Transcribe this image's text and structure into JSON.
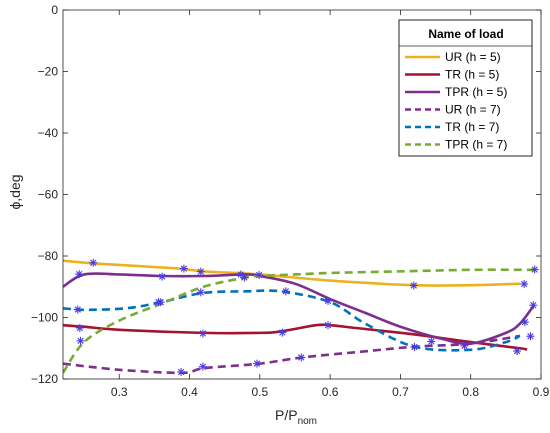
{
  "chart_data": {
    "type": "line",
    "xlabel": "P/P",
    "xlabel_sub": "nom",
    "ylabel": "ϕ,deg",
    "xlim": [
      0.22,
      0.9
    ],
    "ylim": [
      -120,
      0
    ],
    "xticks": [
      0.3,
      0.4,
      0.5,
      0.6,
      0.7,
      0.8,
      0.9
    ],
    "yticks": [
      -120,
      -100,
      -80,
      -60,
      -40,
      -20,
      0
    ],
    "xtick_labels": [
      "0.3",
      "0.4",
      "0.5",
      "0.6",
      "0.7",
      "0.8",
      "0.9"
    ],
    "ytick_labels": [
      "−120",
      "−100",
      "−80",
      "−60",
      "−40",
      "−20",
      "0"
    ],
    "grid": false,
    "legend": {
      "title": "Name of load",
      "placement": "top-right"
    },
    "series": [
      {
        "name": "UR (h = 5)",
        "color": "#EDB120",
        "dash": "solid",
        "x": [
          0.22,
          0.27,
          0.38,
          0.42,
          0.5,
          0.6,
          0.72,
          0.8,
          0.87
        ],
        "y": [
          -81.5,
          -82.5,
          -84,
          -85,
          -86,
          -88,
          -89.5,
          -89.5,
          -89
        ]
      },
      {
        "name": "TR (h = 5)",
        "color": "#A2142F",
        "dash": "solid",
        "x": [
          0.22,
          0.25,
          0.3,
          0.42,
          0.5,
          0.53,
          0.58,
          0.6,
          0.64,
          0.72,
          0.8,
          0.87,
          0.88
        ],
        "y": [
          -102.5,
          -103,
          -104,
          -105,
          -105,
          -104.5,
          -102.5,
          -102.5,
          -103.5,
          -105.5,
          -108,
          -110,
          -110.5
        ]
      },
      {
        "name": "TPR (h = 5)",
        "color": "#7E2F8E",
        "dash": "solid",
        "x": [
          0.22,
          0.25,
          0.3,
          0.36,
          0.42,
          0.48,
          0.5,
          0.55,
          0.6,
          0.65,
          0.7,
          0.76,
          0.8,
          0.85,
          0.87,
          0.89
        ],
        "y": [
          -90,
          -86,
          -86,
          -86.5,
          -86.5,
          -86,
          -86.5,
          -89,
          -94,
          -98.5,
          -103,
          -107,
          -108.5,
          -105,
          -102,
          -96
        ]
      },
      {
        "name": "UR (h = 7)",
        "color": "#7E2F8E",
        "dash": "dashed",
        "x": [
          0.22,
          0.3,
          0.39,
          0.42,
          0.5,
          0.56,
          0.65,
          0.72,
          0.8,
          0.87
        ],
        "y": [
          -115,
          -117,
          -118,
          -116.5,
          -115,
          -113,
          -111,
          -109.5,
          -108.5,
          -106
        ]
      },
      {
        "name": "TR (h = 7)",
        "color": "#0072BD",
        "dash": "dashed",
        "x": [
          0.22,
          0.25,
          0.31,
          0.36,
          0.42,
          0.48,
          0.53,
          0.6,
          0.65,
          0.72,
          0.8,
          0.85,
          0.87
        ],
        "y": [
          -97,
          -97.5,
          -97,
          -95,
          -92,
          -91.5,
          -91.5,
          -95,
          -102,
          -109.5,
          -110.5,
          -108,
          -106
        ]
      },
      {
        "name": "TPR (h = 7)",
        "color": "#77AC30",
        "dash": "dashed",
        "x": [
          0.22,
          0.25,
          0.3,
          0.36,
          0.42,
          0.48,
          0.5,
          0.55,
          0.6,
          0.7,
          0.8,
          0.89
        ],
        "y": [
          -118,
          -108,
          -101,
          -95.5,
          -90,
          -87,
          -86.5,
          -86,
          -85.5,
          -85,
          -84.5,
          -84.5
        ]
      }
    ],
    "markers": {
      "color": "#4B3BE0",
      "points": [
        [
          0.263,
          -82.2
        ],
        [
          0.392,
          -84.1
        ],
        [
          0.416,
          -85.1
        ],
        [
          0.719,
          -89.6
        ],
        [
          0.876,
          -89.1
        ],
        [
          0.419,
          -105.2
        ],
        [
          0.532,
          -104.9
        ],
        [
          0.597,
          -102.5
        ],
        [
          0.243,
          -85.9
        ],
        [
          0.361,
          -86.7
        ],
        [
          0.473,
          -86
        ],
        [
          0.499,
          -86.2
        ],
        [
          0.877,
          -101.5
        ],
        [
          0.889,
          -96
        ],
        [
          0.244,
          -103.4
        ],
        [
          0.388,
          -117.7
        ],
        [
          0.419,
          -116
        ],
        [
          0.496,
          -115
        ],
        [
          0.559,
          -113
        ],
        [
          0.866,
          -110.9
        ],
        [
          0.885,
          -106.1
        ],
        [
          0.241,
          -97.4
        ],
        [
          0.359,
          -95
        ],
        [
          0.416,
          -91.8
        ],
        [
          0.537,
          -91.5
        ],
        [
          0.597,
          -94.6
        ],
        [
          0.744,
          -107.8
        ],
        [
          0.72,
          -109.6
        ],
        [
          0.791,
          -109.2
        ],
        [
          0.245,
          -107.6
        ],
        [
          0.356,
          -95
        ],
        [
          0.478,
          -87
        ],
        [
          0.891,
          -84.4
        ]
      ]
    }
  }
}
